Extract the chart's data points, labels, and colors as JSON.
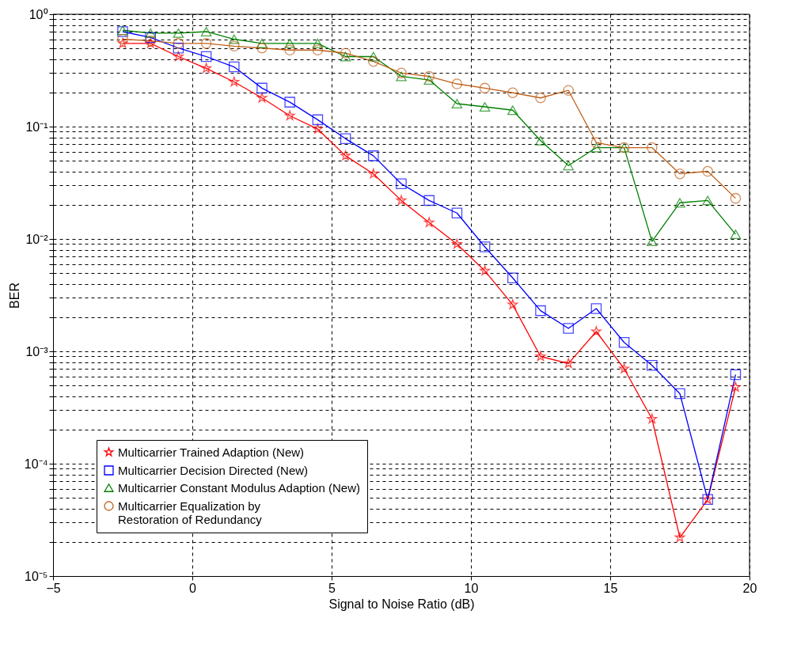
{
  "chart_data": {
    "type": "line",
    "xlabel": "Signal to Noise Ratio (dB)",
    "ylabel": "BER",
    "log": "y",
    "grid": true,
    "legend": "bottom left",
    "line_style": "solid",
    "x": [
      -2.5,
      -1.5,
      -0.5,
      0.5,
      1.5,
      2.5,
      3.5,
      4.5,
      5.5,
      6.5,
      7.5,
      8.5,
      9.5,
      10.5,
      11.5,
      12.5,
      13.5,
      14.5,
      15.5,
      16.5,
      17.5,
      18.5,
      19.5
    ],
    "xlim": [
      -5,
      20
    ],
    "xticks": [
      -5,
      0,
      5,
      10,
      15,
      20
    ],
    "ylim": [
      1e-05,
      1
    ],
    "yticks": [
      {
        "value": 1e-05,
        "label": "10⁻⁵"
      },
      {
        "value": 2e-05,
        "label": null
      },
      {
        "value": 3e-05,
        "label": null
      },
      {
        "value": 4e-05,
        "label": null
      },
      {
        "value": 5e-05,
        "label": null
      },
      {
        "value": 6e-05,
        "label": null
      },
      {
        "value": 7e-05,
        "label": null
      },
      {
        "value": 8e-05,
        "label": null
      },
      {
        "value": 9e-05,
        "label": null
      },
      {
        "value": 0.0001,
        "label": "10⁻⁴"
      },
      {
        "value": 0.0002,
        "label": null
      },
      {
        "value": 0.0003,
        "label": null
      },
      {
        "value": 0.0004,
        "label": null
      },
      {
        "value": 0.0005,
        "label": null
      },
      {
        "value": 0.0006,
        "label": null
      },
      {
        "value": 0.0007,
        "label": null
      },
      {
        "value": 0.0008,
        "label": null
      },
      {
        "value": 0.0009,
        "label": null
      },
      {
        "value": 0.001,
        "label": "10⁻³"
      },
      {
        "value": 0.002,
        "label": null
      },
      {
        "value": 0.003,
        "label": null
      },
      {
        "value": 0.004,
        "label": null
      },
      {
        "value": 0.005,
        "label": null
      },
      {
        "value": 0.006,
        "label": null
      },
      {
        "value": 0.007,
        "label": null
      },
      {
        "value": 0.008,
        "label": null
      },
      {
        "value": 0.009,
        "label": null
      },
      {
        "value": 0.01,
        "label": "10⁻²"
      },
      {
        "value": 0.02,
        "label": null
      },
      {
        "value": 0.03,
        "label": null
      },
      {
        "value": 0.04,
        "label": null
      },
      {
        "value": 0.05,
        "label": null
      },
      {
        "value": 0.06,
        "label": null
      },
      {
        "value": 0.07,
        "label": null
      },
      {
        "value": 0.08,
        "label": null
      },
      {
        "value": 0.09,
        "label": null
      },
      {
        "value": 0.1,
        "label": "10⁻¹"
      },
      {
        "value": 0.2,
        "label": null
      },
      {
        "value": 0.3,
        "label": null
      },
      {
        "value": 0.4,
        "label": null
      },
      {
        "value": 0.5,
        "label": null
      },
      {
        "value": 0.6,
        "label": null
      },
      {
        "value": 0.7,
        "label": null
      },
      {
        "value": 0.8,
        "label": null
      },
      {
        "value": 0.9,
        "label": null
      },
      {
        "value": 1,
        "label": "10⁰"
      }
    ],
    "series": [
      {
        "name": "Multicarrier Trained Adaption (New)",
        "color": "#ff0000",
        "marker": "star",
        "values": [
          0.55,
          0.55,
          0.42,
          0.33,
          0.25,
          0.18,
          0.125,
          0.095,
          0.055,
          0.038,
          0.022,
          0.014,
          0.009,
          0.0052,
          0.0026,
          0.0009,
          0.00078,
          0.0015,
          0.0007,
          0.00025,
          2.2e-05,
          4.8e-05,
          0.00048
        ]
      },
      {
        "name": "Multicarrier Decision Directed (New)",
        "color": "#0000ff",
        "marker": "square",
        "values": [
          0.7,
          0.62,
          0.5,
          0.42,
          0.34,
          0.22,
          0.165,
          0.115,
          0.078,
          0.055,
          0.031,
          0.022,
          0.017,
          0.0085,
          0.0045,
          0.0023,
          0.0016,
          0.0024,
          0.0012,
          0.00075,
          0.00042,
          4.8e-05,
          0.00062
        ]
      },
      {
        "name": "Multicarrier Constant Modulus Adaption (New)",
        "color": "#008000",
        "marker": "triangle",
        "values": [
          0.72,
          0.68,
          0.68,
          0.7,
          0.6,
          0.55,
          0.55,
          0.55,
          0.42,
          0.42,
          0.28,
          0.26,
          0.16,
          0.15,
          0.14,
          0.075,
          0.045,
          0.065,
          0.065,
          0.0095,
          0.021,
          0.022,
          0.011
        ]
      },
      {
        "name": "Multicarrier Equalization by\nRestoration of Redundancy",
        "color": "#c0601a",
        "marker": "circle",
        "values": [
          0.6,
          0.58,
          0.55,
          0.55,
          0.52,
          0.5,
          0.48,
          0.48,
          0.45,
          0.38,
          0.3,
          0.28,
          0.24,
          0.22,
          0.2,
          0.18,
          0.21,
          0.072,
          0.065,
          0.065,
          0.038,
          0.04,
          0.023
        ]
      }
    ]
  }
}
